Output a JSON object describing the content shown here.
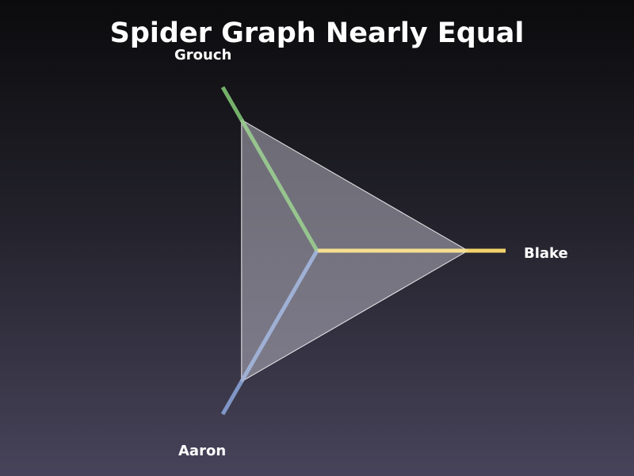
{
  "slide": {
    "title": "Spider Graph Nearly Equal"
  },
  "chart_data": {
    "type": "radar",
    "axes": [
      {
        "name": "Blake",
        "color": "#f2d36b",
        "value": 0.8
      },
      {
        "name": "Aaron",
        "color": "#7f96c6",
        "value": 0.8
      },
      {
        "name": "Grouch",
        "color": "#74b06a",
        "value": 0.8
      }
    ],
    "fill_color": "#b4b2bf",
    "outline_color": "#ffffff",
    "axis_max": 1.0,
    "legend": "none",
    "grid": false
  }
}
